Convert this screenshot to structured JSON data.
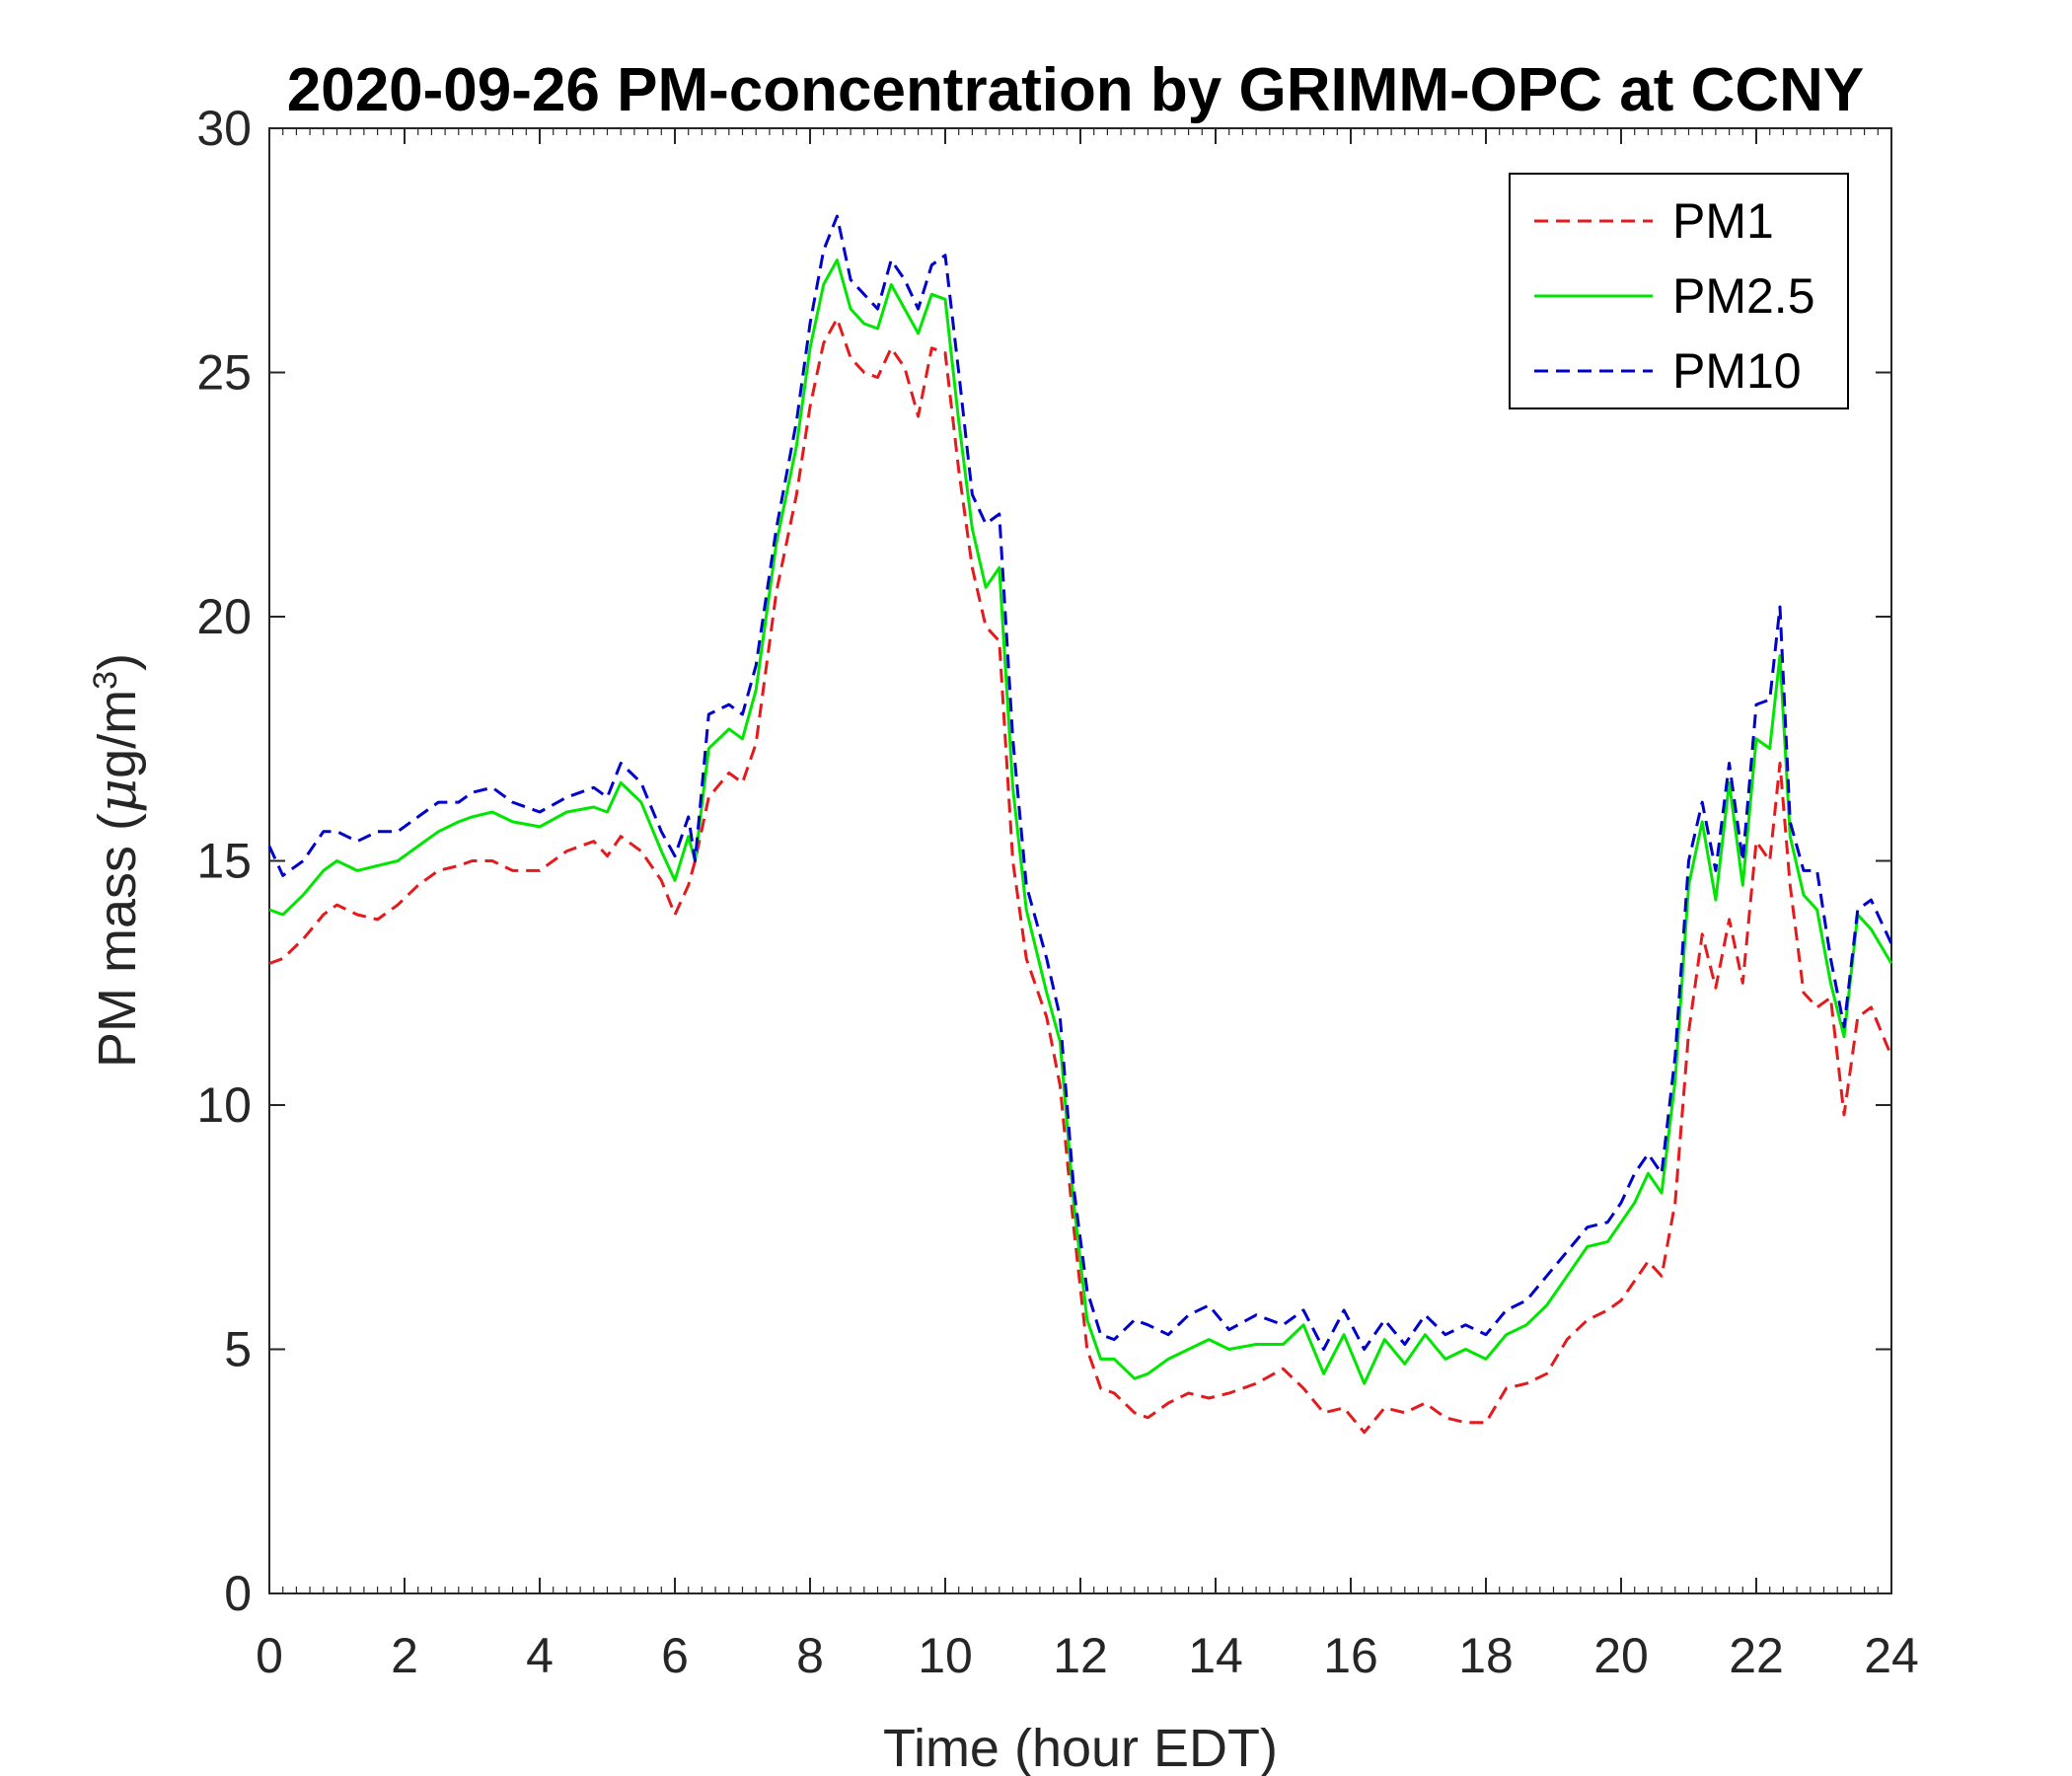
{
  "chart_data": {
    "type": "line",
    "title": "2020-09-26 PM-concentration by GRIMM-OPC at CCNY",
    "xlabel": "Time (hour EDT)",
    "ylabel": "PM mass (μg/m³)",
    "ylabel_parts": {
      "main": "PM mass (",
      "greek": "μ",
      "unit": "g/m",
      "sup": "3",
      "close": ")"
    },
    "xlim": [
      0,
      24
    ],
    "ylim": [
      0,
      30
    ],
    "xticks": [
      0,
      2,
      4,
      6,
      8,
      10,
      12,
      14,
      16,
      18,
      20,
      22,
      24
    ],
    "xtick_labels": [
      "0",
      "2",
      "4",
      "6",
      "8",
      "10",
      "12",
      "14",
      "16",
      "18",
      "20",
      "22",
      "24"
    ],
    "yticks": [
      0,
      5,
      10,
      15,
      20,
      25,
      30
    ],
    "ytick_labels": [
      "0",
      "5",
      "10",
      "15",
      "20",
      "25",
      "30"
    ],
    "grid": false,
    "legend": "top-right",
    "series": [
      {
        "name": "PM1",
        "color": "#e41a1c",
        "style": "dashed",
        "x": [
          0,
          0.2,
          0.5,
          0.8,
          1.0,
          1.3,
          1.6,
          1.9,
          2.2,
          2.5,
          2.8,
          3.0,
          3.3,
          3.6,
          4.0,
          4.4,
          4.8,
          5.0,
          5.2,
          5.5,
          5.8,
          6.0,
          6.2,
          6.3,
          6.5,
          6.8,
          7.0,
          7.2,
          7.5,
          7.8,
          8.0,
          8.2,
          8.4,
          8.6,
          8.8,
          9.0,
          9.2,
          9.4,
          9.6,
          9.8,
          10.0,
          10.2,
          10.4,
          10.6,
          10.8,
          11.0,
          11.2,
          11.5,
          11.7,
          11.9,
          12.1,
          12.3,
          12.5,
          12.8,
          13.0,
          13.3,
          13.6,
          13.9,
          14.2,
          14.6,
          15.0,
          15.3,
          15.6,
          15.9,
          16.2,
          16.5,
          16.8,
          17.1,
          17.4,
          17.7,
          18.0,
          18.3,
          18.6,
          18.9,
          19.2,
          19.5,
          19.8,
          20.0,
          20.2,
          20.4,
          20.6,
          20.8,
          21.0,
          21.2,
          21.4,
          21.6,
          21.8,
          22.0,
          22.2,
          22.35,
          22.5,
          22.7,
          22.9,
          23.1,
          23.3,
          23.5,
          23.7,
          24.0
        ],
        "values": [
          12.9,
          13.0,
          13.4,
          13.9,
          14.1,
          13.9,
          13.8,
          14.1,
          14.5,
          14.8,
          14.9,
          15.0,
          15.0,
          14.8,
          14.8,
          15.2,
          15.4,
          15.1,
          15.5,
          15.2,
          14.6,
          13.9,
          14.5,
          15.0,
          16.3,
          16.8,
          16.6,
          17.4,
          20.5,
          22.5,
          24.3,
          25.6,
          26.1,
          25.3,
          25.0,
          24.9,
          25.5,
          25.1,
          24.1,
          25.5,
          25.4,
          23.0,
          21.0,
          19.8,
          19.5,
          15.0,
          13.0,
          11.8,
          10.4,
          7.5,
          5.0,
          4.2,
          4.1,
          3.7,
          3.6,
          3.9,
          4.1,
          4.0,
          4.1,
          4.3,
          4.6,
          4.2,
          3.7,
          3.8,
          3.3,
          3.8,
          3.7,
          3.9,
          3.6,
          3.5,
          3.5,
          4.2,
          4.3,
          4.5,
          5.2,
          5.6,
          5.8,
          6.0,
          6.4,
          6.8,
          6.5,
          8.0,
          11.5,
          13.5,
          12.4,
          13.8,
          12.5,
          15.4,
          15.0,
          17.0,
          14.5,
          12.3,
          12.0,
          12.2,
          9.8,
          11.8,
          12.0,
          11.0
        ]
      },
      {
        "name": "PM2.5",
        "color": "#00e600",
        "style": "solid",
        "x": [
          0,
          0.2,
          0.5,
          0.8,
          1.0,
          1.3,
          1.6,
          1.9,
          2.2,
          2.5,
          2.8,
          3.0,
          3.3,
          3.6,
          4.0,
          4.4,
          4.8,
          5.0,
          5.2,
          5.5,
          5.8,
          6.0,
          6.2,
          6.3,
          6.5,
          6.8,
          7.0,
          7.2,
          7.5,
          7.8,
          8.0,
          8.2,
          8.4,
          8.6,
          8.8,
          9.0,
          9.2,
          9.4,
          9.6,
          9.8,
          10.0,
          10.2,
          10.4,
          10.6,
          10.8,
          11.0,
          11.2,
          11.5,
          11.7,
          11.9,
          12.1,
          12.3,
          12.5,
          12.8,
          13.0,
          13.3,
          13.6,
          13.9,
          14.2,
          14.6,
          15.0,
          15.3,
          15.6,
          15.9,
          16.2,
          16.5,
          16.8,
          17.1,
          17.4,
          17.7,
          18.0,
          18.3,
          18.6,
          18.9,
          19.2,
          19.5,
          19.8,
          20.0,
          20.2,
          20.4,
          20.6,
          20.8,
          21.0,
          21.2,
          21.4,
          21.6,
          21.8,
          22.0,
          22.2,
          22.35,
          22.5,
          22.7,
          22.9,
          23.1,
          23.3,
          23.5,
          23.7,
          24.0
        ],
        "values": [
          14.0,
          13.9,
          14.3,
          14.8,
          15.0,
          14.8,
          14.9,
          15.0,
          15.3,
          15.6,
          15.8,
          15.9,
          16.0,
          15.8,
          15.7,
          16.0,
          16.1,
          16.0,
          16.6,
          16.2,
          15.2,
          14.6,
          15.5,
          15.0,
          17.3,
          17.7,
          17.5,
          18.5,
          21.5,
          23.5,
          25.5,
          26.8,
          27.3,
          26.3,
          26.0,
          25.9,
          26.8,
          26.3,
          25.8,
          26.6,
          26.5,
          24.0,
          21.8,
          20.6,
          21.0,
          16.5,
          14.0,
          12.3,
          11.3,
          8.0,
          5.6,
          4.8,
          4.8,
          4.4,
          4.5,
          4.8,
          5.0,
          5.2,
          5.0,
          5.1,
          5.1,
          5.5,
          4.5,
          5.3,
          4.3,
          5.2,
          4.7,
          5.3,
          4.8,
          5.0,
          4.8,
          5.3,
          5.5,
          5.9,
          6.5,
          7.1,
          7.2,
          7.6,
          8.0,
          8.6,
          8.2,
          10.5,
          14.5,
          15.8,
          14.2,
          16.6,
          14.5,
          17.5,
          17.3,
          19.2,
          15.5,
          14.3,
          14.0,
          12.5,
          11.4,
          13.9,
          13.6,
          12.9
        ]
      },
      {
        "name": "PM10",
        "color": "#0000cc",
        "style": "dashed",
        "x": [
          0,
          0.2,
          0.5,
          0.8,
          1.0,
          1.3,
          1.6,
          1.9,
          2.2,
          2.5,
          2.8,
          3.0,
          3.3,
          3.6,
          4.0,
          4.4,
          4.8,
          5.0,
          5.2,
          5.5,
          5.8,
          6.0,
          6.2,
          6.3,
          6.5,
          6.8,
          7.0,
          7.2,
          7.5,
          7.8,
          8.0,
          8.2,
          8.4,
          8.6,
          8.8,
          9.0,
          9.2,
          9.4,
          9.6,
          9.8,
          10.0,
          10.2,
          10.4,
          10.6,
          10.8,
          11.0,
          11.2,
          11.5,
          11.7,
          11.9,
          12.1,
          12.3,
          12.5,
          12.8,
          13.0,
          13.3,
          13.6,
          13.9,
          14.2,
          14.6,
          15.0,
          15.3,
          15.6,
          15.9,
          16.2,
          16.5,
          16.8,
          17.1,
          17.4,
          17.7,
          18.0,
          18.3,
          18.6,
          18.9,
          19.2,
          19.5,
          19.8,
          20.0,
          20.2,
          20.4,
          20.6,
          20.8,
          21.0,
          21.2,
          21.4,
          21.6,
          21.8,
          22.0,
          22.2,
          22.35,
          22.5,
          22.7,
          22.9,
          23.1,
          23.3,
          23.5,
          23.7,
          24.0
        ],
        "values": [
          15.3,
          14.7,
          15.0,
          15.6,
          15.6,
          15.4,
          15.6,
          15.6,
          15.9,
          16.2,
          16.2,
          16.4,
          16.5,
          16.2,
          16.0,
          16.3,
          16.5,
          16.3,
          17.0,
          16.6,
          15.6,
          15.1,
          15.9,
          15.0,
          18.0,
          18.2,
          18.0,
          19.0,
          21.8,
          24.0,
          26.0,
          27.5,
          28.2,
          26.9,
          26.6,
          26.3,
          27.3,
          26.9,
          26.3,
          27.2,
          27.4,
          25.0,
          22.5,
          21.9,
          22.1,
          17.5,
          14.5,
          13.0,
          11.8,
          8.3,
          6.2,
          5.3,
          5.2,
          5.6,
          5.5,
          5.3,
          5.7,
          5.9,
          5.4,
          5.7,
          5.5,
          5.8,
          5.0,
          5.8,
          5.0,
          5.6,
          5.1,
          5.7,
          5.3,
          5.5,
          5.3,
          5.8,
          6.0,
          6.5,
          7.0,
          7.5,
          7.6,
          8.0,
          8.6,
          9.0,
          8.6,
          11.0,
          15.0,
          16.2,
          14.8,
          17.0,
          15.0,
          18.2,
          18.3,
          20.2,
          15.8,
          14.8,
          14.8,
          13.0,
          11.6,
          14.0,
          14.2,
          13.3
        ]
      }
    ]
  }
}
